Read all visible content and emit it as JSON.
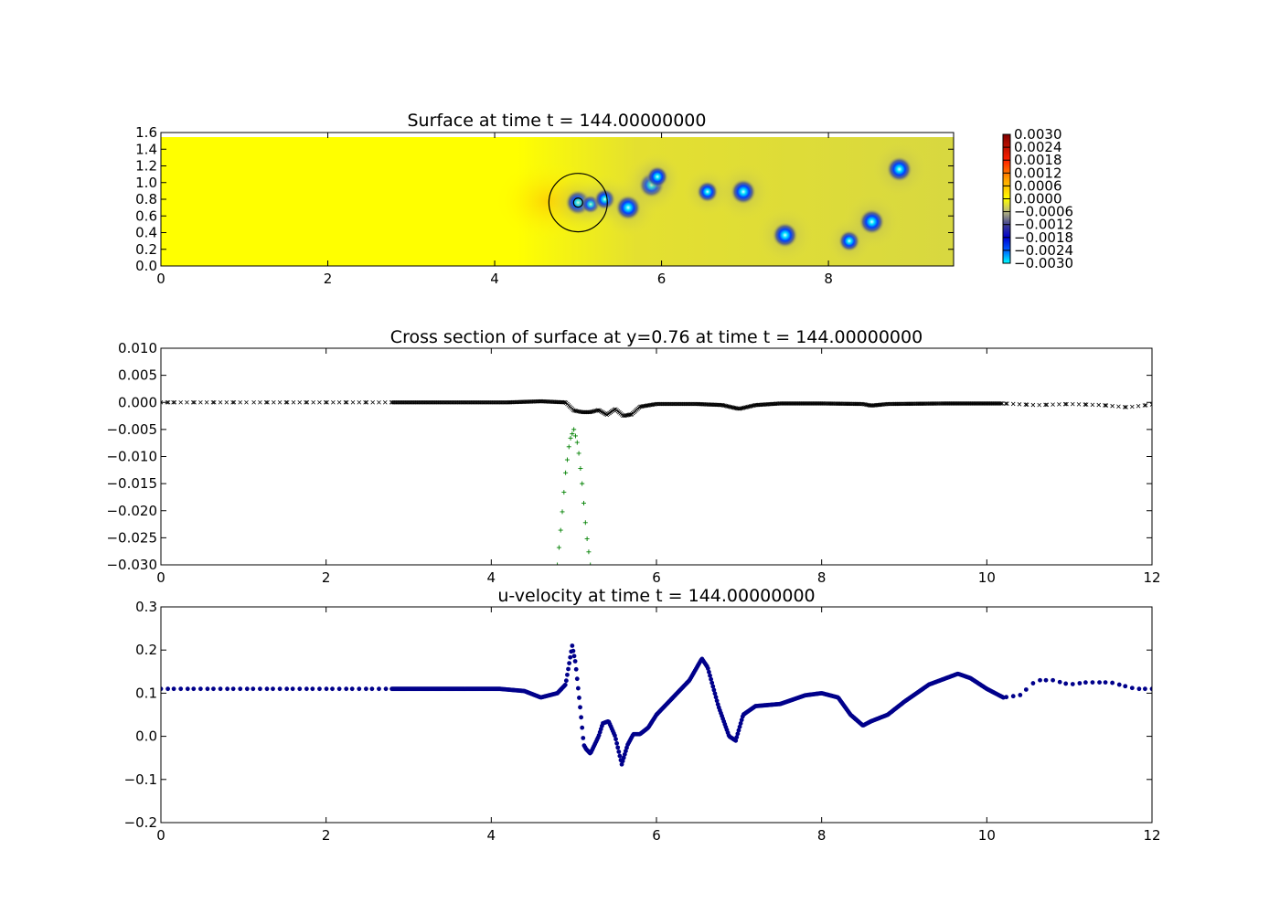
{
  "chart_data": [
    {
      "type": "heatmap",
      "title": "Surface at time t =   144.00000000",
      "xlim": [
        0,
        9.5
      ],
      "ylim": [
        0,
        1.6
      ],
      "xticks": [
        "0",
        "2",
        "4",
        "6",
        "8"
      ],
      "yticks": [
        "0.0",
        "0.2",
        "0.4",
        "0.6",
        "0.8",
        "1.0",
        "1.2",
        "1.4",
        "1.6"
      ],
      "colorbar_ticks": [
        "0.0030",
        "0.0024",
        "0.0018",
        "0.0012",
        "0.0006",
        "0.0000",
        "−0.0006",
        "−0.0012",
        "−0.0018",
        "−0.0024",
        "−0.0030"
      ],
      "colorbar_range": [
        -0.003,
        0.003
      ],
      "background_value": 0.0,
      "circle": {
        "x": 5.0,
        "y": 0.76,
        "r": 0.35
      },
      "features": [
        {
          "x": 5.0,
          "y": 0.76,
          "value": -0.003
        },
        {
          "x": 5.15,
          "y": 0.74,
          "value": -0.002
        },
        {
          "x": 5.32,
          "y": 0.8,
          "value": -0.0024
        },
        {
          "x": 5.6,
          "y": 0.7,
          "value": -0.003
        },
        {
          "x": 5.88,
          "y": 0.97,
          "value": -0.003
        },
        {
          "x": 5.95,
          "y": 1.07,
          "value": -0.0024
        },
        {
          "x": 6.55,
          "y": 0.89,
          "value": -0.0024
        },
        {
          "x": 6.98,
          "y": 0.89,
          "value": -0.003
        },
        {
          "x": 7.48,
          "y": 0.37,
          "value": -0.003
        },
        {
          "x": 8.25,
          "y": 0.3,
          "value": -0.0024
        },
        {
          "x": 8.52,
          "y": 0.53,
          "value": -0.003
        },
        {
          "x": 8.85,
          "y": 1.16,
          "value": -0.003
        }
      ]
    },
    {
      "type": "scatter",
      "title": "Cross section of surface at y=0.76 at time t =   144.00000000",
      "xlim": [
        0,
        12
      ],
      "ylim": [
        -0.03,
        0.01
      ],
      "xticks": [
        "0",
        "2",
        "4",
        "6",
        "8",
        "10",
        "12"
      ],
      "yticks": [
        "0.010",
        "0.005",
        "0.000",
        "−0.005",
        "−0.010",
        "−0.015",
        "−0.020",
        "−0.025",
        "−0.030"
      ],
      "series": [
        {
          "marker": "x",
          "color": "#000000",
          "x": [
            0,
            1,
            2,
            2.8,
            3.5,
            4.2,
            4.6,
            4.9,
            5.0,
            5.1,
            5.2,
            5.3,
            5.4,
            5.5,
            5.6,
            5.7,
            5.8,
            6.0,
            6.5,
            6.8,
            7.0,
            7.2,
            7.5,
            8.0,
            8.5,
            8.6,
            8.8,
            9.5,
            10.2,
            10.6,
            11.0,
            11.4,
            11.7,
            12.0
          ],
          "y": [
            0.0,
            0.0,
            0.0,
            0.0,
            0.0,
            0.0,
            0.0002,
            0.0,
            -0.0015,
            -0.0018,
            -0.0018,
            -0.0014,
            -0.0023,
            -0.0012,
            -0.0025,
            -0.0022,
            -0.0008,
            -0.0003,
            -0.0003,
            -0.0005,
            -0.0012,
            -0.0005,
            -0.0002,
            -0.0002,
            -0.0003,
            -0.0006,
            -0.0003,
            -0.0002,
            -0.0002,
            -0.0005,
            -0.0003,
            -0.0005,
            -0.0009,
            -0.0004
          ]
        },
        {
          "marker": "+",
          "color": "#008000",
          "x": [
            4.8,
            4.85,
            4.9,
            4.95,
            5.0,
            5.05,
            5.1,
            5.15,
            5.2
          ],
          "y": [
            -0.03,
            -0.022,
            -0.013,
            -0.007,
            -0.005,
            -0.008,
            -0.015,
            -0.024,
            -0.03
          ]
        }
      ]
    },
    {
      "type": "scatter",
      "title": "u-velocity at time t =   144.00000000",
      "xlim": [
        0,
        12
      ],
      "ylim": [
        -0.2,
        0.3
      ],
      "xticks": [
        "0",
        "2",
        "4",
        "6",
        "8",
        "10",
        "12"
      ],
      "yticks": [
        "0.3",
        "0.2",
        "0.1",
        "0.0",
        "−0.1",
        "−0.2"
      ],
      "series": [
        {
          "marker": "o",
          "color": "#00008b",
          "x": [
            0,
            1,
            2,
            2.8,
            3.5,
            4.1,
            4.4,
            4.6,
            4.8,
            4.9,
            4.98,
            5.02,
            5.08,
            5.12,
            5.15,
            5.2,
            5.25,
            5.3,
            5.35,
            5.42,
            5.5,
            5.58,
            5.65,
            5.72,
            5.8,
            5.9,
            6.0,
            6.2,
            6.4,
            6.55,
            6.62,
            6.75,
            6.88,
            6.96,
            7.05,
            7.2,
            7.5,
            7.8,
            8.0,
            8.2,
            8.35,
            8.5,
            8.6,
            8.8,
            9.0,
            9.3,
            9.65,
            9.8,
            10.0,
            10.2,
            10.4,
            10.6,
            10.8,
            11.0,
            11.2,
            11.5,
            11.8,
            12.0
          ],
          "y": [
            0.11,
            0.11,
            0.11,
            0.11,
            0.11,
            0.11,
            0.105,
            0.09,
            0.1,
            0.12,
            0.21,
            0.17,
            0.06,
            -0.02,
            -0.03,
            -0.04,
            -0.02,
            0.0,
            0.03,
            0.035,
            0.0,
            -0.065,
            -0.02,
            0.005,
            0.005,
            0.02,
            0.05,
            0.09,
            0.13,
            0.18,
            0.16,
            0.07,
            0.0,
            -0.01,
            0.05,
            0.07,
            0.075,
            0.095,
            0.1,
            0.09,
            0.05,
            0.025,
            0.035,
            0.05,
            0.08,
            0.12,
            0.145,
            0.135,
            0.11,
            0.09,
            0.095,
            0.13,
            0.13,
            0.12,
            0.125,
            0.125,
            0.11,
            0.11
          ]
        }
      ]
    }
  ]
}
